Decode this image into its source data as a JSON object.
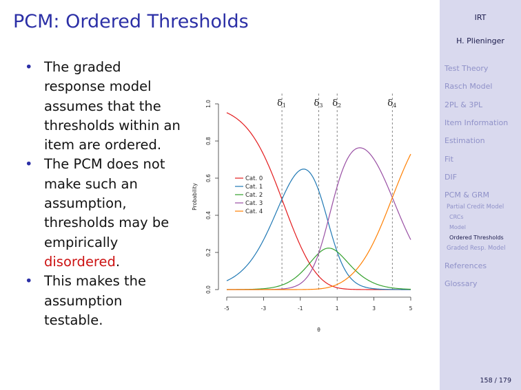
{
  "slide": {
    "title": "PCM: Ordered Thresholds",
    "bullets": [
      {
        "text": "The graded response model assumes that the thresholds within an item are ordered."
      },
      {
        "text_before": "The PCM does not make such an assumption, thresholds may be empirically ",
        "highlight": "disordered",
        "text_after": "."
      },
      {
        "text": "This makes the assumption testable."
      }
    ]
  },
  "sidebar": {
    "course": "IRT",
    "author": "H. Plieninger",
    "items": [
      {
        "label": "Test Theory"
      },
      {
        "label": "Rasch Model"
      },
      {
        "label": "2PL & 3PL"
      },
      {
        "label": "Item Information"
      },
      {
        "label": "Estimation"
      },
      {
        "label": "Fit"
      },
      {
        "label": "DIF"
      },
      {
        "label": "PCM & GRM"
      },
      {
        "label": "Partial Credit Model"
      },
      {
        "label": "CRCs"
      },
      {
        "label": "Model"
      },
      {
        "label": "Ordered Thresholds",
        "active": true
      },
      {
        "label": "Graded Resp. Model"
      },
      {
        "label": "References"
      },
      {
        "label": "Glossary"
      }
    ],
    "page": "158 / 179"
  },
  "chart_data": {
    "type": "line",
    "xlabel": "θ",
    "ylabel": "Probability",
    "xlim": [
      -5,
      5
    ],
    "ylim": [
      0,
      1
    ],
    "x_ticks": [
      "-5",
      "-3",
      "-1",
      "1",
      "3",
      "5"
    ],
    "y_ticks": [
      "0.0",
      "0.2",
      "0.4",
      "0.6",
      "0.8",
      "1.0"
    ],
    "thresholds": [
      {
        "symbol": "δ",
        "index": "1",
        "value": -2.0
      },
      {
        "symbol": "δ",
        "index": "3",
        "value": 0.0
      },
      {
        "symbol": "δ",
        "index": "2",
        "value": 1.0
      },
      {
        "symbol": "δ",
        "index": "4",
        "value": 4.0
      }
    ],
    "series": [
      {
        "name": "Cat. 0",
        "color": "#e31a1c"
      },
      {
        "name": "Cat. 1",
        "color": "#1f78b4"
      },
      {
        "name": "Cat. 2",
        "color": "#33a02c"
      },
      {
        "name": "Cat. 3",
        "color": "#984ea3"
      },
      {
        "name": "Cat. 4",
        "color": "#ff7f00"
      }
    ],
    "legend_position": "center-left",
    "grid": false
  }
}
